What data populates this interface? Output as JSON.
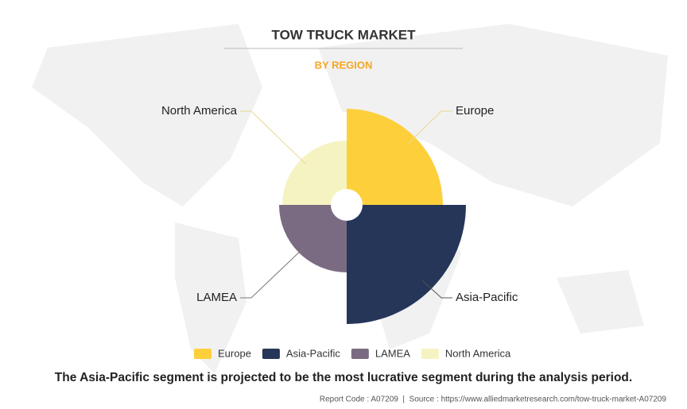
{
  "chart_data": {
    "type": "rose",
    "title": "TOW TRUCK MARKET",
    "subtitle": "BY REGION",
    "categories": [
      "Europe",
      "Asia-Pacific",
      "LAMEA",
      "North America"
    ],
    "values": [
      121,
      150,
      85,
      81
    ],
    "colors": [
      "#fdd03b",
      "#253659",
      "#7b6b82",
      "#f5f3c1"
    ],
    "caption": "The Asia-Pacific segment is projected to be the most lucrative segment during the analysis period.",
    "source": "Report Code : A07209  |  Source : https://www.alliedmarketresearch.com/tow-truck-market-A07209"
  }
}
